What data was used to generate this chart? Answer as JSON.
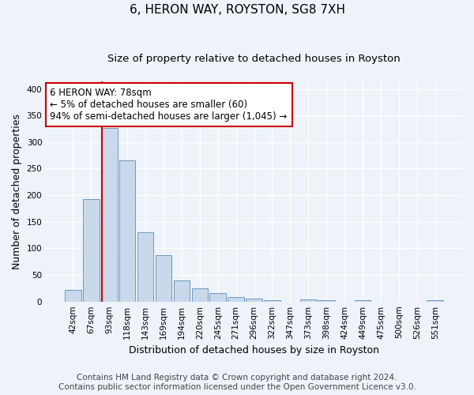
{
  "title": "6, HERON WAY, ROYSTON, SG8 7XH",
  "subtitle": "Size of property relative to detached houses in Royston",
  "xlabel": "Distribution of detached houses by size in Royston",
  "ylabel": "Number of detached properties",
  "categories": [
    "42sqm",
    "67sqm",
    "93sqm",
    "118sqm",
    "143sqm",
    "169sqm",
    "194sqm",
    "220sqm",
    "245sqm",
    "271sqm",
    "296sqm",
    "322sqm",
    "347sqm",
    "373sqm",
    "398sqm",
    "424sqm",
    "449sqm",
    "475sqm",
    "500sqm",
    "526sqm",
    "551sqm"
  ],
  "values": [
    22,
    193,
    327,
    265,
    130,
    87,
    40,
    25,
    16,
    8,
    5,
    3,
    0,
    4,
    2,
    0,
    3,
    0,
    0,
    0,
    2
  ],
  "bar_color": "#c9d9eb",
  "bar_edge_color": "#5b8db8",
  "background_color": "#eef2f9",
  "grid_color": "#ffffff",
  "annotation_text": "6 HERON WAY: 78sqm\n← 5% of detached houses are smaller (60)\n94% of semi-detached houses are larger (1,045) →",
  "annotation_box_color": "#ffffff",
  "annotation_box_edge_color": "#cc0000",
  "vline_color": "#cc0000",
  "vline_pos": 1.575,
  "ylim": [
    0,
    415
  ],
  "yticks": [
    0,
    50,
    100,
    150,
    200,
    250,
    300,
    350,
    400
  ],
  "footer_line1": "Contains HM Land Registry data © Crown copyright and database right 2024.",
  "footer_line2": "Contains public sector information licensed under the Open Government Licence v3.0.",
  "title_fontsize": 11,
  "subtitle_fontsize": 9.5,
  "tick_fontsize": 7.5,
  "ylabel_fontsize": 9,
  "xlabel_fontsize": 9,
  "annotation_fontsize": 8.5,
  "footer_fontsize": 7.5
}
